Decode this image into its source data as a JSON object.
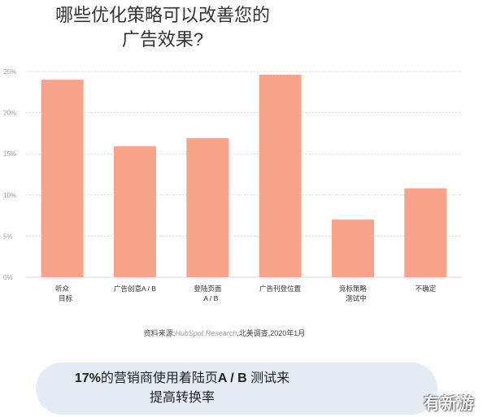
{
  "title": {
    "line1": "哪些优化策略可以改善您的",
    "line2": "广告效果?"
  },
  "source": {
    "prefix": "资料来源:",
    "publisher": "HubSpot Research",
    "suffix": ",北美调查,2020年1月"
  },
  "callout": {
    "line1_number": "17%",
    "line1_text": "的营销商使用着陆页",
    "line1_bold": "A / B",
    "line1_tail": " 测试来",
    "line2": "提高转换率"
  },
  "watermark": "有新游",
  "colors": {
    "bar": "#f7a48a",
    "grid": "#dadada",
    "axis_text": "#9aa0a6",
    "card": "#e6ecf4"
  },
  "chart_data": {
    "type": "bar",
    "categories": [
      [
        "听众",
        "目标"
      ],
      [
        "广告创意A / B"
      ],
      [
        "登陆页面",
        "A / B"
      ],
      [
        "广告刊登位置"
      ],
      [
        "竞标策略",
        "测试中"
      ],
      [
        "不确定"
      ]
    ],
    "values": [
      24,
      15.9,
      16.9,
      24.6,
      7,
      10.8
    ],
    "ylim": [
      0,
      25
    ],
    "yticks": [
      0,
      5,
      10,
      15,
      20,
      25
    ],
    "ytick_labels": [
      "0%",
      "5%",
      "10%",
      "15%",
      "20%",
      "25%"
    ],
    "grid": true,
    "title": "哪些优化策略可以改善您的广告效果?",
    "xlabel": "",
    "ylabel": ""
  }
}
